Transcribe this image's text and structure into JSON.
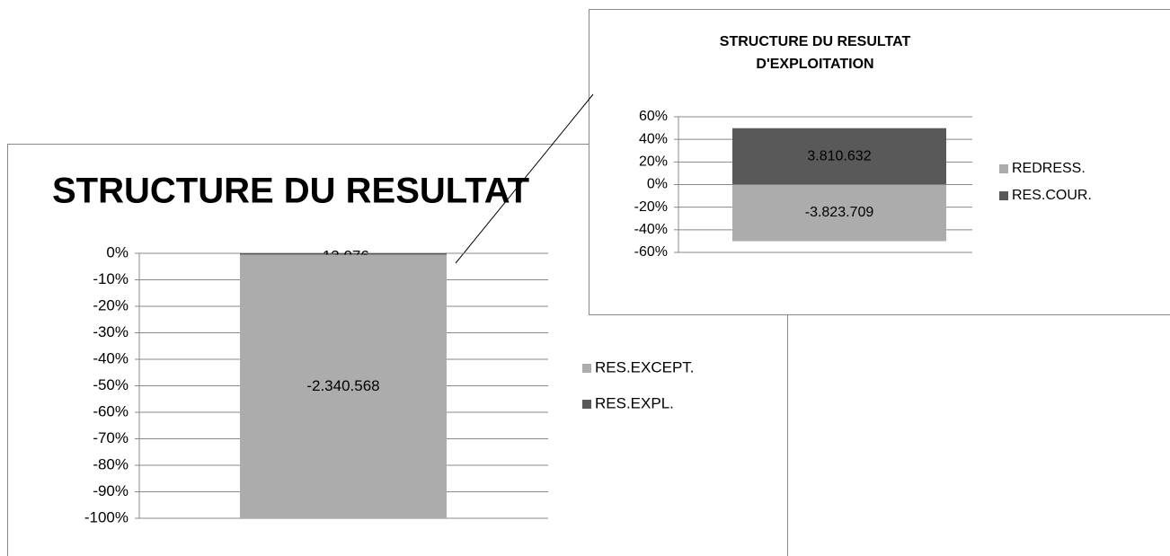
{
  "chart_data": [
    {
      "type": "bar",
      "stacking": "percent",
      "title": [
        "STRUCTURE DU RESULTAT"
      ],
      "categories": [
        null
      ],
      "series": [
        {
          "name": "RES.EXPL.",
          "color": "#595959",
          "values": [
            -13076
          ],
          "value_labels": [
            "-13.076"
          ]
        },
        {
          "name": "RES.EXCEPT.",
          "color": "#acacac",
          "values": [
            -2340568
          ],
          "value_labels": [
            "-2.340.568"
          ]
        }
      ],
      "ylim": [
        -100,
        0
      ],
      "yticks": [
        {
          "value": 0,
          "label": "0%"
        },
        {
          "value": -10,
          "label": "-10%"
        },
        {
          "value": -20,
          "label": "-20%"
        },
        {
          "value": -30,
          "label": "-30%"
        },
        {
          "value": -40,
          "label": "-40%"
        },
        {
          "value": -50,
          "label": "-50%"
        },
        {
          "value": -60,
          "label": "-60%"
        },
        {
          "value": -70,
          "label": "-70%"
        },
        {
          "value": -80,
          "label": "-80%"
        },
        {
          "value": -90,
          "label": "-90%"
        },
        {
          "value": -100,
          "label": "-100%"
        }
      ],
      "grid": true,
      "legend": "right"
    },
    {
      "type": "bar",
      "stacking": "percent",
      "title": [
        "STRUCTURE  DU RESULTAT",
        "D'EXPLOITATION"
      ],
      "categories": [
        null
      ],
      "series": [
        {
          "name": "RES.COUR.",
          "color": "#595959",
          "values": [
            3810632
          ],
          "value_labels": [
            "3.810.632"
          ]
        },
        {
          "name": "REDRESS.",
          "color": "#acacac",
          "values": [
            -3823709
          ],
          "value_labels": [
            "-3.823.709"
          ]
        }
      ],
      "ylim": [
        -60,
        60
      ],
      "yticks": [
        {
          "value": 60,
          "label": "60%"
        },
        {
          "value": 40,
          "label": "40%"
        },
        {
          "value": 20,
          "label": "20%"
        },
        {
          "value": 0,
          "label": "0%"
        },
        {
          "value": -20,
          "label": "-20%"
        },
        {
          "value": -40,
          "label": "-40%"
        },
        {
          "value": -60,
          "label": "-60%"
        }
      ],
      "grid": true,
      "legend": "right"
    }
  ]
}
